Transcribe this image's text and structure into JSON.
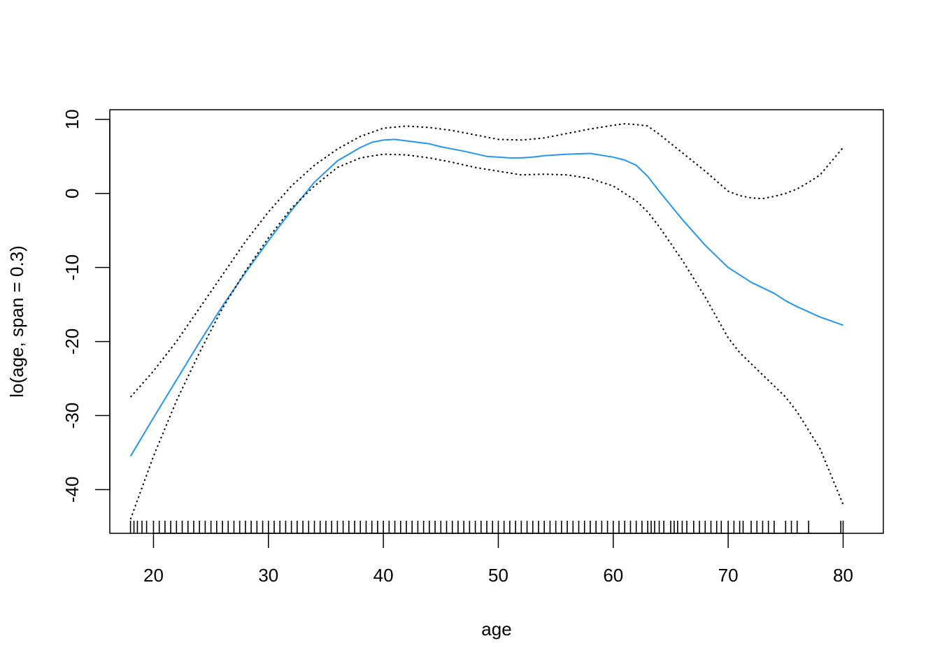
{
  "chart_data": {
    "type": "line",
    "title": "",
    "xlabel": "age",
    "ylabel": "lo(age, span = 0.3)",
    "xlim": [
      16.2,
      83.5
    ],
    "ylim": [
      -45.9,
      11.3
    ],
    "x_ticks": [
      20,
      30,
      40,
      50,
      60,
      70,
      80
    ],
    "y_ticks": [
      -40,
      -30,
      -20,
      -10,
      0,
      10
    ],
    "grid": false,
    "legend": "none",
    "colors": {
      "fit": "#2196f3",
      "band": "#000000",
      "axis": "#000000"
    },
    "series": [
      {
        "role": "fit",
        "style": "solid",
        "x": [
          18,
          20,
          22,
          24,
          26,
          28,
          30,
          32,
          34,
          36,
          38,
          39,
          40,
          41,
          42,
          43,
          44,
          45,
          47,
          49,
          51,
          52,
          53,
          54,
          56,
          58,
          60,
          61,
          62,
          63,
          64,
          65,
          66,
          68,
          70,
          71,
          72,
          74,
          75,
          76,
          77,
          78,
          80
        ],
        "values": [
          -35.5,
          -30.3,
          -25.2,
          -20.1,
          -15.2,
          -10.7,
          -6.4,
          -2.3,
          1.5,
          4.4,
          6.2,
          6.9,
          7.2,
          7.3,
          7.1,
          6.9,
          6.7,
          6.3,
          5.7,
          5.0,
          4.8,
          4.8,
          4.9,
          5.1,
          5.3,
          5.4,
          4.9,
          4.5,
          3.8,
          2.3,
          0.3,
          -1.6,
          -3.5,
          -7.0,
          -10.0,
          -11.0,
          -12.0,
          -13.5,
          -14.5,
          -15.3,
          -16.0,
          -16.7,
          -17.8
        ]
      },
      {
        "role": "upper-band",
        "style": "dotted",
        "x": [
          18,
          20,
          22,
          24,
          26,
          28,
          30,
          32,
          34,
          36,
          38,
          40,
          42,
          44,
          46,
          48,
          50,
          52,
          54,
          56,
          58,
          60,
          61,
          62,
          63,
          64,
          66,
          68,
          70,
          71,
          72,
          73,
          74,
          75,
          76,
          77,
          78,
          80
        ],
        "values": [
          -27.5,
          -24.0,
          -20.0,
          -15.5,
          -11.0,
          -6.5,
          -2.5,
          1.0,
          3.8,
          6.0,
          7.7,
          8.8,
          9.1,
          8.9,
          8.5,
          7.9,
          7.3,
          7.2,
          7.5,
          8.1,
          8.7,
          9.2,
          9.4,
          9.3,
          9.1,
          8.0,
          5.5,
          3.0,
          0.3,
          -0.3,
          -0.6,
          -0.7,
          -0.4,
          0.0,
          0.6,
          1.5,
          2.5,
          6.2
        ]
      },
      {
        "role": "lower-band",
        "style": "dotted",
        "x": [
          18,
          20,
          22,
          24,
          26,
          28,
          30,
          32,
          34,
          36,
          38,
          40,
          42,
          44,
          46,
          48,
          50,
          52,
          54,
          56,
          58,
          60,
          61,
          62,
          63,
          64,
          66,
          68,
          70,
          71,
          72,
          73,
          74,
          75,
          76,
          77,
          78,
          80
        ],
        "values": [
          -44.0,
          -35.5,
          -28.0,
          -21.5,
          -15.5,
          -10.5,
          -6.0,
          -2.0,
          1.0,
          3.5,
          4.8,
          5.3,
          5.2,
          4.8,
          4.2,
          3.5,
          3.0,
          2.5,
          2.6,
          2.5,
          2.0,
          1.0,
          0.0,
          -1.0,
          -2.5,
          -4.5,
          -9.0,
          -14.0,
          -19.5,
          -21.5,
          -23.0,
          -24.5,
          -26.0,
          -27.5,
          -29.5,
          -32.0,
          -34.5,
          -42.0
        ]
      }
    ],
    "rug": {
      "x": [
        18,
        18.3,
        18.6,
        19,
        19.4,
        20,
        20.5,
        21,
        21.5,
        22,
        22.5,
        23,
        23.5,
        24,
        24.5,
        25,
        25.5,
        26,
        26.5,
        27,
        27.5,
        28,
        28.5,
        29,
        29.5,
        30,
        30.5,
        31,
        31.5,
        32,
        32.5,
        33,
        33.5,
        34,
        34.5,
        35,
        35.5,
        36,
        36.5,
        37,
        37.5,
        38,
        38.5,
        39,
        39.5,
        40,
        40.5,
        41,
        41.5,
        42,
        42.5,
        43,
        43.5,
        44,
        44.5,
        45,
        45.5,
        46,
        46.5,
        47,
        47.5,
        48,
        48.5,
        49,
        49.5,
        50,
        50.5,
        51,
        51.5,
        52,
        52.5,
        53,
        53.5,
        54,
        54.5,
        55,
        55.5,
        56,
        56.5,
        57,
        57.5,
        58,
        58.5,
        59,
        59.5,
        60,
        60.5,
        61,
        61.5,
        62,
        62.5,
        63,
        63.3,
        63.6,
        64,
        64.4,
        65,
        65.3,
        65.6,
        66,
        66.4,
        67,
        67.5,
        68,
        68.5,
        69,
        69.4,
        70,
        70.5,
        71,
        71.3,
        72,
        72.5,
        73,
        73.5,
        74,
        75,
        75.5,
        76,
        77,
        79.8,
        80
      ]
    }
  }
}
